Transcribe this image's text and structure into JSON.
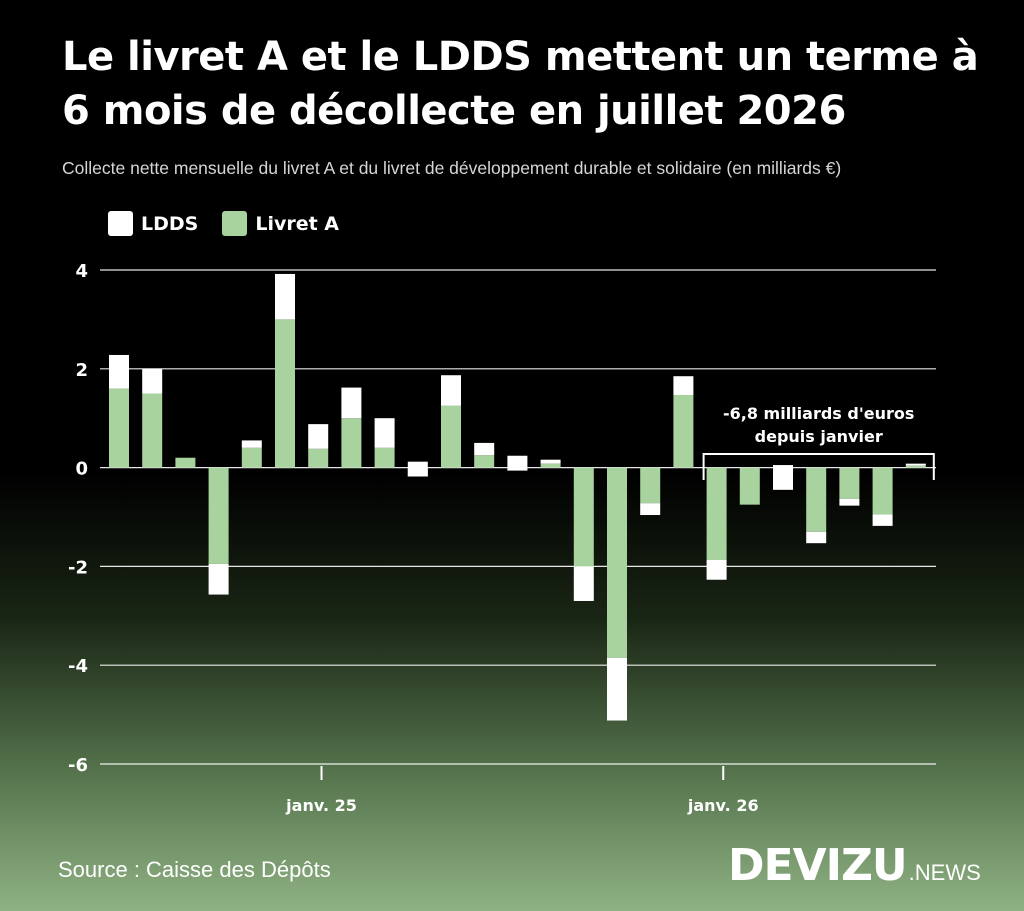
{
  "header": {
    "title": "Le livret A et le LDDS mettent un terme à 6 mois de décollecte en juillet 2026",
    "subtitle": "Collecte nette mensuelle du livret A et du livret de développement durable et solidaire (en milliards €)"
  },
  "footer": {
    "source": "Source : Caisse des Dépôts",
    "brand_main": "DEVIZU",
    "brand_sub": ".NEWS"
  },
  "colors": {
    "ldds": "#ffffff",
    "livret_a": "#a9d39e",
    "gridline": "#ffffff",
    "axis_text": "#ffffff"
  },
  "chart_data": {
    "type": "bar",
    "stacked": true,
    "title": "Le livret A et le LDDS mettent un terme à 6 mois de décollecte en juillet 2026",
    "subtitle": "Collecte nette mensuelle du livret A et du livret de développement durable et solidaire (en milliards €)",
    "legend": [
      "LDDS",
      "Livret A"
    ],
    "legend_position": "top-left",
    "ylim": [
      -6,
      4
    ],
    "y_ticks": [
      "4",
      "2",
      "0",
      "-2",
      "-4",
      "-6"
    ],
    "y_tick_values": [
      4,
      2,
      0,
      -2,
      -4,
      -6
    ],
    "grid": true,
    "x_tick_labels": [
      {
        "label": "janv. 25",
        "category_index": 6.1
      },
      {
        "label": "janv. 26",
        "category_index": 18.2
      }
    ],
    "series": [
      {
        "name": "Livret A",
        "color": "#a9d39e",
        "values": [
          1.6,
          1.5,
          0.2,
          -1.95,
          0.4,
          3.0,
          0.38,
          1.0,
          0.4,
          -0.18,
          1.25,
          0.25,
          -0.06,
          0.08,
          -2.0,
          -3.85,
          -0.72,
          1.47,
          -1.87,
          -0.75,
          0.05,
          -1.3,
          -0.63,
          -0.95,
          0.04
        ]
      },
      {
        "name": "LDDS",
        "color": "#ffffff",
        "values": [
          0.68,
          0.5,
          0.0,
          -0.62,
          0.15,
          0.92,
          0.5,
          0.62,
          0.6,
          0.3,
          0.62,
          0.25,
          0.3,
          0.08,
          -0.7,
          -1.27,
          -0.24,
          0.38,
          -0.4,
          0.0,
          -0.5,
          -0.23,
          -0.14,
          -0.23,
          0.04
        ]
      }
    ],
    "annotation": {
      "text_line1": "-6,8 milliards d'euros",
      "text_line2": "depuis janvier",
      "from_index": 18,
      "to_index": 24
    }
  }
}
